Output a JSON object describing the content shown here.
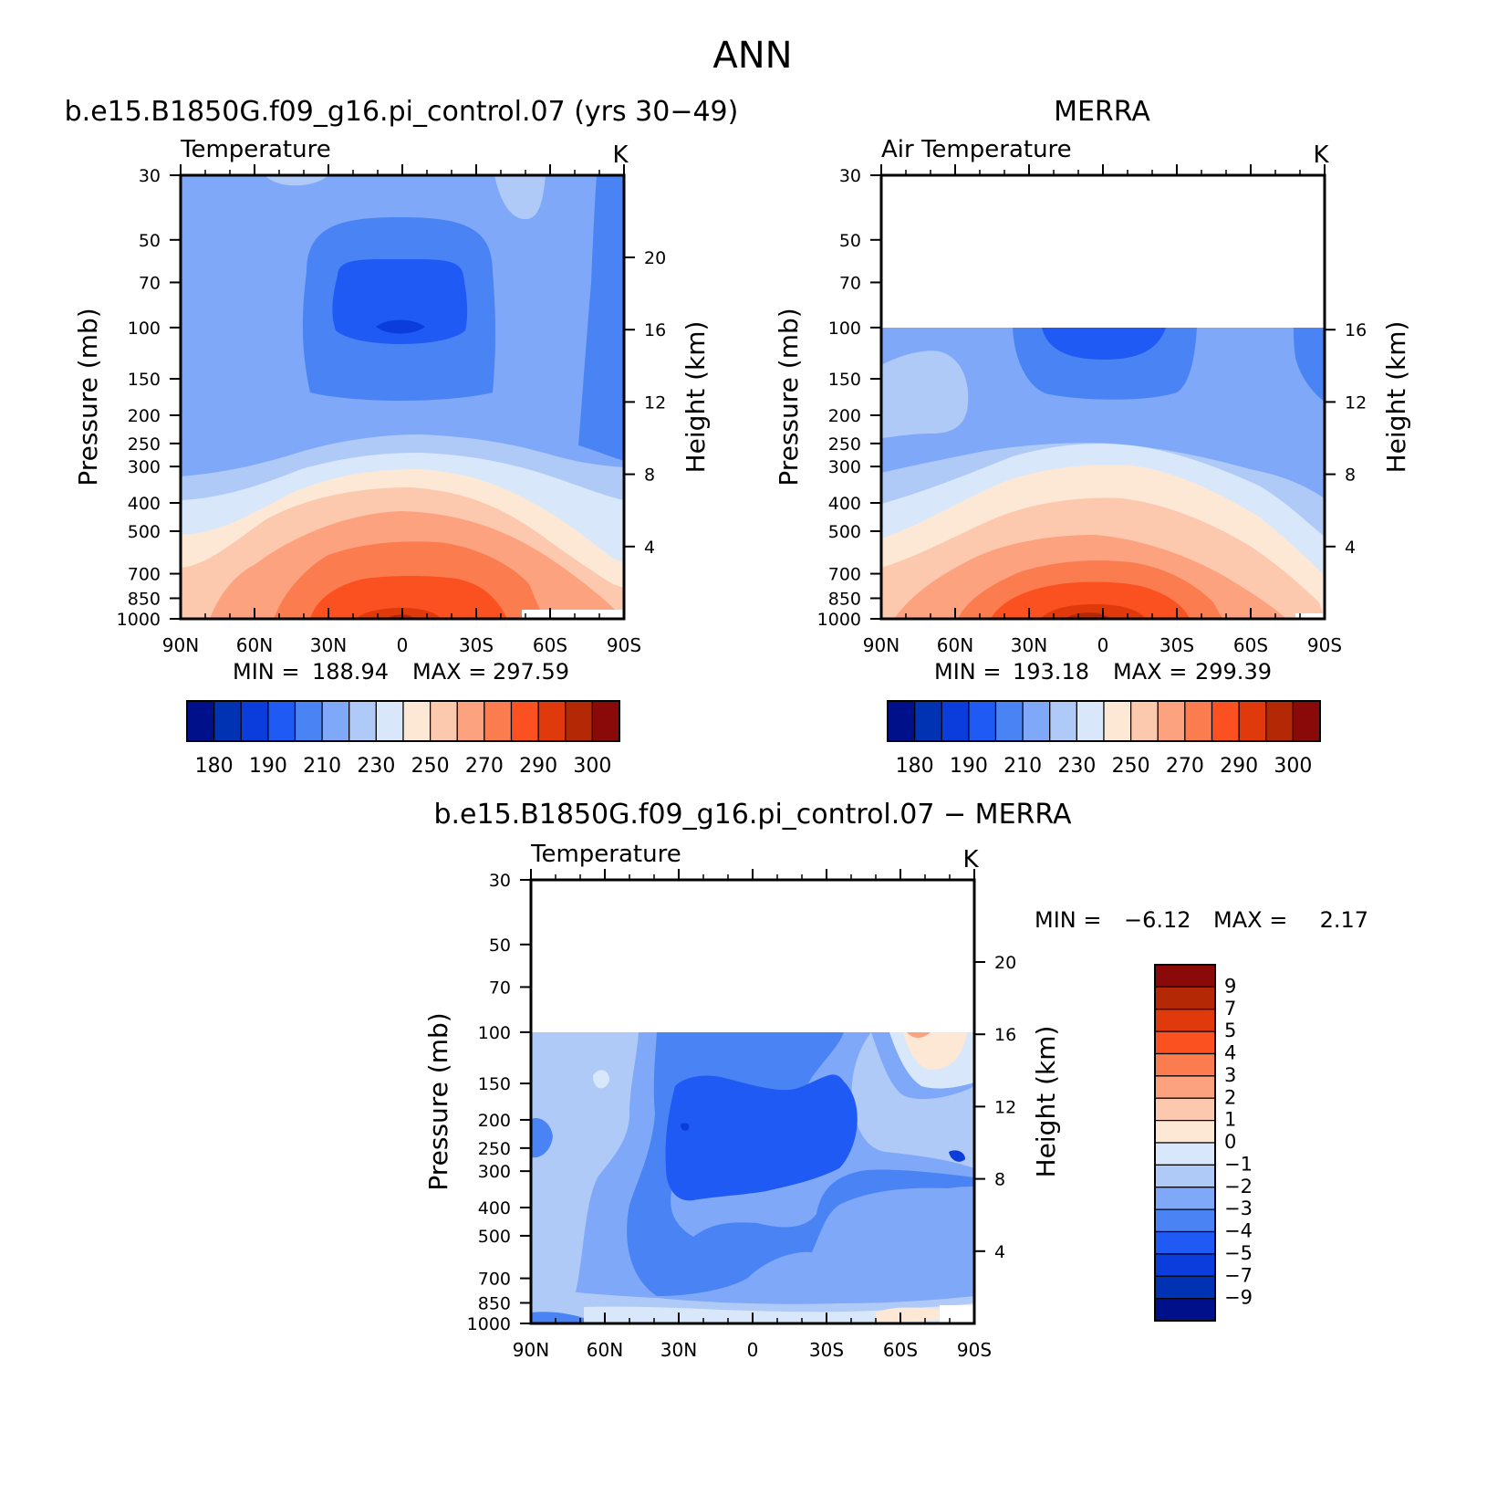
{
  "page": {
    "title": "ANN"
  },
  "panels": {
    "left_title": "b.e15.B1850G.f09_g16.pi_control.07 (yrs 30−49)",
    "right_title": "MERRA",
    "bottom_title": "b.e15.B1850G.f09_g16.pi_control.07 − MERRA"
  },
  "chart_data": [
    {
      "id": "model",
      "type": "contour",
      "title": "b.e15.B1850G.f09_g16.pi_control.07 (yrs 30−49)",
      "variable_label": "Temperature",
      "units": "K",
      "xlabel": "",
      "ylabel": "Pressure (mb)",
      "y2label": "Height (km)",
      "x_ticks": [
        "90N",
        "60N",
        "30N",
        "0",
        "30S",
        "60S",
        "90S"
      ],
      "x_range": [
        90,
        -90
      ],
      "y_ticks": [
        30,
        50,
        70,
        100,
        150,
        200,
        250,
        300,
        400,
        500,
        700,
        850,
        1000
      ],
      "y2_ticks": [
        20,
        16,
        12,
        8,
        4
      ],
      "stats": {
        "min_label": "MIN =",
        "min": "188.94",
        "max_label": "MAX =",
        "max": "297.59"
      },
      "top_pressure": 30,
      "colorbar": {
        "orientation": "horizontal",
        "labels": [
          "180",
          "190",
          "210",
          "230",
          "250",
          "270",
          "290",
          "300"
        ],
        "levels": [
          175,
          180,
          185,
          190,
          200,
          210,
          220,
          230,
          240,
          250,
          260,
          270,
          280,
          290,
          295,
          300
        ],
        "colors": [
          "#000f8a",
          "#0032b4",
          "#0a3ddc",
          "#1f5af5",
          "#4a84f4",
          "#7fa8f8",
          "#b0caf8",
          "#d8e8fa",
          "#fde8d6",
          "#fcc9ae",
          "#fca27f",
          "#fb7c4f",
          "#fb5020",
          "#e03a0c",
          "#b42806",
          "#8a0a0a"
        ]
      }
    },
    {
      "id": "obs",
      "type": "contour",
      "title": "MERRA",
      "variable_label": "Air Temperature",
      "units": "K",
      "xlabel": "",
      "ylabel": "Pressure (mb)",
      "y2label": "Height (km)",
      "x_ticks": [
        "90N",
        "60N",
        "30N",
        "0",
        "30S",
        "60S",
        "90S"
      ],
      "x_range": [
        90,
        -90
      ],
      "y_ticks": [
        30,
        50,
        70,
        100,
        150,
        200,
        250,
        300,
        400,
        500,
        700,
        850,
        1000
      ],
      "y2_ticks": [
        16,
        12,
        8,
        4
      ],
      "stats": {
        "min_label": "MIN =",
        "min": "193.18",
        "max_label": "MAX =",
        "max": "299.39"
      },
      "top_pressure": 100,
      "colorbar": {
        "orientation": "horizontal",
        "labels": [
          "180",
          "190",
          "210",
          "230",
          "250",
          "270",
          "290",
          "300"
        ],
        "levels": [
          175,
          180,
          185,
          190,
          200,
          210,
          220,
          230,
          240,
          250,
          260,
          270,
          280,
          290,
          295,
          300
        ],
        "colors": [
          "#000f8a",
          "#0032b4",
          "#0a3ddc",
          "#1f5af5",
          "#4a84f4",
          "#7fa8f8",
          "#b0caf8",
          "#d8e8fa",
          "#fde8d6",
          "#fcc9ae",
          "#fca27f",
          "#fb7c4f",
          "#fb5020",
          "#e03a0c",
          "#b42806",
          "#8a0a0a"
        ]
      }
    },
    {
      "id": "diff",
      "type": "contour",
      "title": "b.e15.B1850G.f09_g16.pi_control.07 − MERRA",
      "variable_label": "Temperature",
      "units": "K",
      "xlabel": "",
      "ylabel": "Pressure (mb)",
      "y2label": "Height (km)",
      "x_ticks": [
        "90N",
        "60N",
        "30N",
        "0",
        "30S",
        "60S",
        "90S"
      ],
      "x_range": [
        90,
        -90
      ],
      "y_ticks": [
        30,
        50,
        70,
        100,
        150,
        200,
        250,
        300,
        400,
        500,
        700,
        850,
        1000
      ],
      "y2_ticks": [
        20,
        16,
        12,
        8,
        4
      ],
      "stats": {
        "min_label": "MIN =",
        "min": "−6.12",
        "max_label": "MAX =",
        "max": "2.17"
      },
      "top_pressure": 100,
      "colorbar": {
        "orientation": "vertical",
        "labels": [
          "9",
          "7",
          "5",
          "4",
          "3",
          "2",
          "1",
          "0",
          "−1",
          "−2",
          "−3",
          "−4",
          "−5",
          "−7",
          "−9"
        ],
        "colors": [
          "#8a0a0a",
          "#b42806",
          "#e03a0c",
          "#fb5020",
          "#fb7c4f",
          "#fca27f",
          "#fcc9ae",
          "#fde8d6",
          "#d8e8fa",
          "#b0caf8",
          "#7fa8f8",
          "#4a84f4",
          "#1f5af5",
          "#0a3ddc",
          "#0032b4",
          "#000f8a"
        ]
      }
    }
  ]
}
